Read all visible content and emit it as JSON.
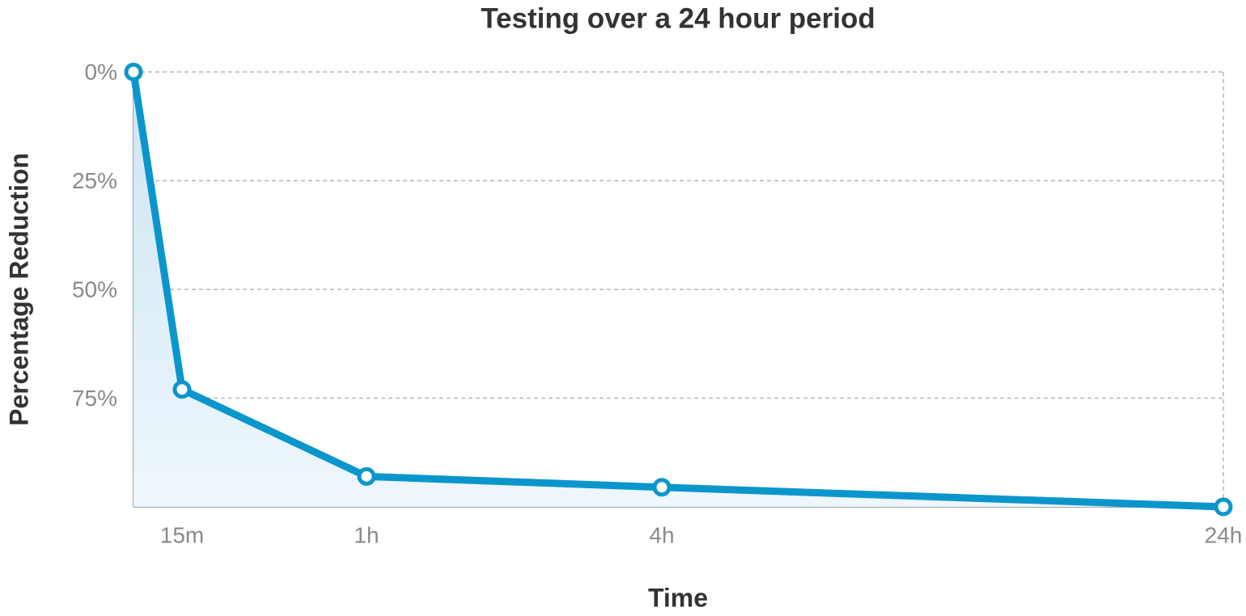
{
  "chart_data": {
    "type": "line",
    "title": "Testing over a 24 hour period",
    "x_label": "Time",
    "y_label": "Percentage Reduction",
    "categories": [
      null,
      "15m",
      "1h",
      "4h",
      "24h"
    ],
    "series": [
      {
        "name": "Percentage Reduction",
        "color": "#0a96cc",
        "values": [
          0,
          73,
          93,
          95.5,
          100
        ]
      }
    ],
    "ylim": [
      0,
      100
    ],
    "y_inverted": true,
    "yticks": [
      {
        "value": 0,
        "label": "0%"
      },
      {
        "value": 25,
        "label": "25%"
      },
      {
        "value": 50,
        "label": "50%"
      },
      {
        "value": 75,
        "label": "75%"
      }
    ],
    "grid": true,
    "area_fill": true
  }
}
